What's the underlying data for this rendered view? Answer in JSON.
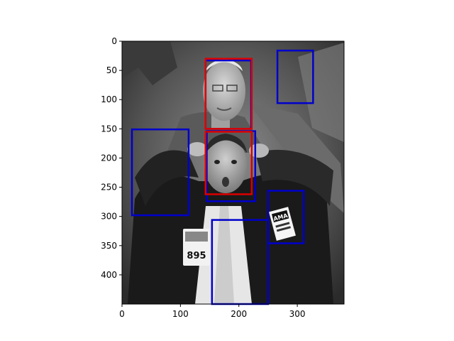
{
  "axes": {
    "x_ticks": [
      0,
      100,
      200,
      300
    ],
    "y_ticks": [
      0,
      50,
      100,
      150,
      200,
      250,
      300,
      350,
      400
    ],
    "x_range": [
      0,
      380
    ],
    "y_range": [
      450,
      0
    ]
  },
  "photo": {
    "description_tag": "grayscale photo of trading floor",
    "badge_text": "895",
    "logo_text": "AMA"
  },
  "boxes": [
    {
      "color": "#0000cc",
      "x1": 143,
      "y1": 33,
      "x2": 221,
      "y2": 150
    },
    {
      "color": "#0000cc",
      "x1": 266,
      "y1": 16,
      "x2": 327,
      "y2": 106
    },
    {
      "color": "#0000cc",
      "x1": 17,
      "y1": 151,
      "x2": 114,
      "y2": 298
    },
    {
      "color": "#0000cc",
      "x1": 145,
      "y1": 154,
      "x2": 228,
      "y2": 274
    },
    {
      "color": "#0000cc",
      "x1": 250,
      "y1": 256,
      "x2": 311,
      "y2": 346
    },
    {
      "color": "#0000cc",
      "x1": 154,
      "y1": 306,
      "x2": 250,
      "y2": 450
    },
    {
      "color": "#dd0000",
      "x1": 143,
      "y1": 30,
      "x2": 222,
      "y2": 150
    },
    {
      "color": "#dd0000",
      "x1": 143,
      "y1": 155,
      "x2": 222,
      "y2": 262
    }
  ]
}
